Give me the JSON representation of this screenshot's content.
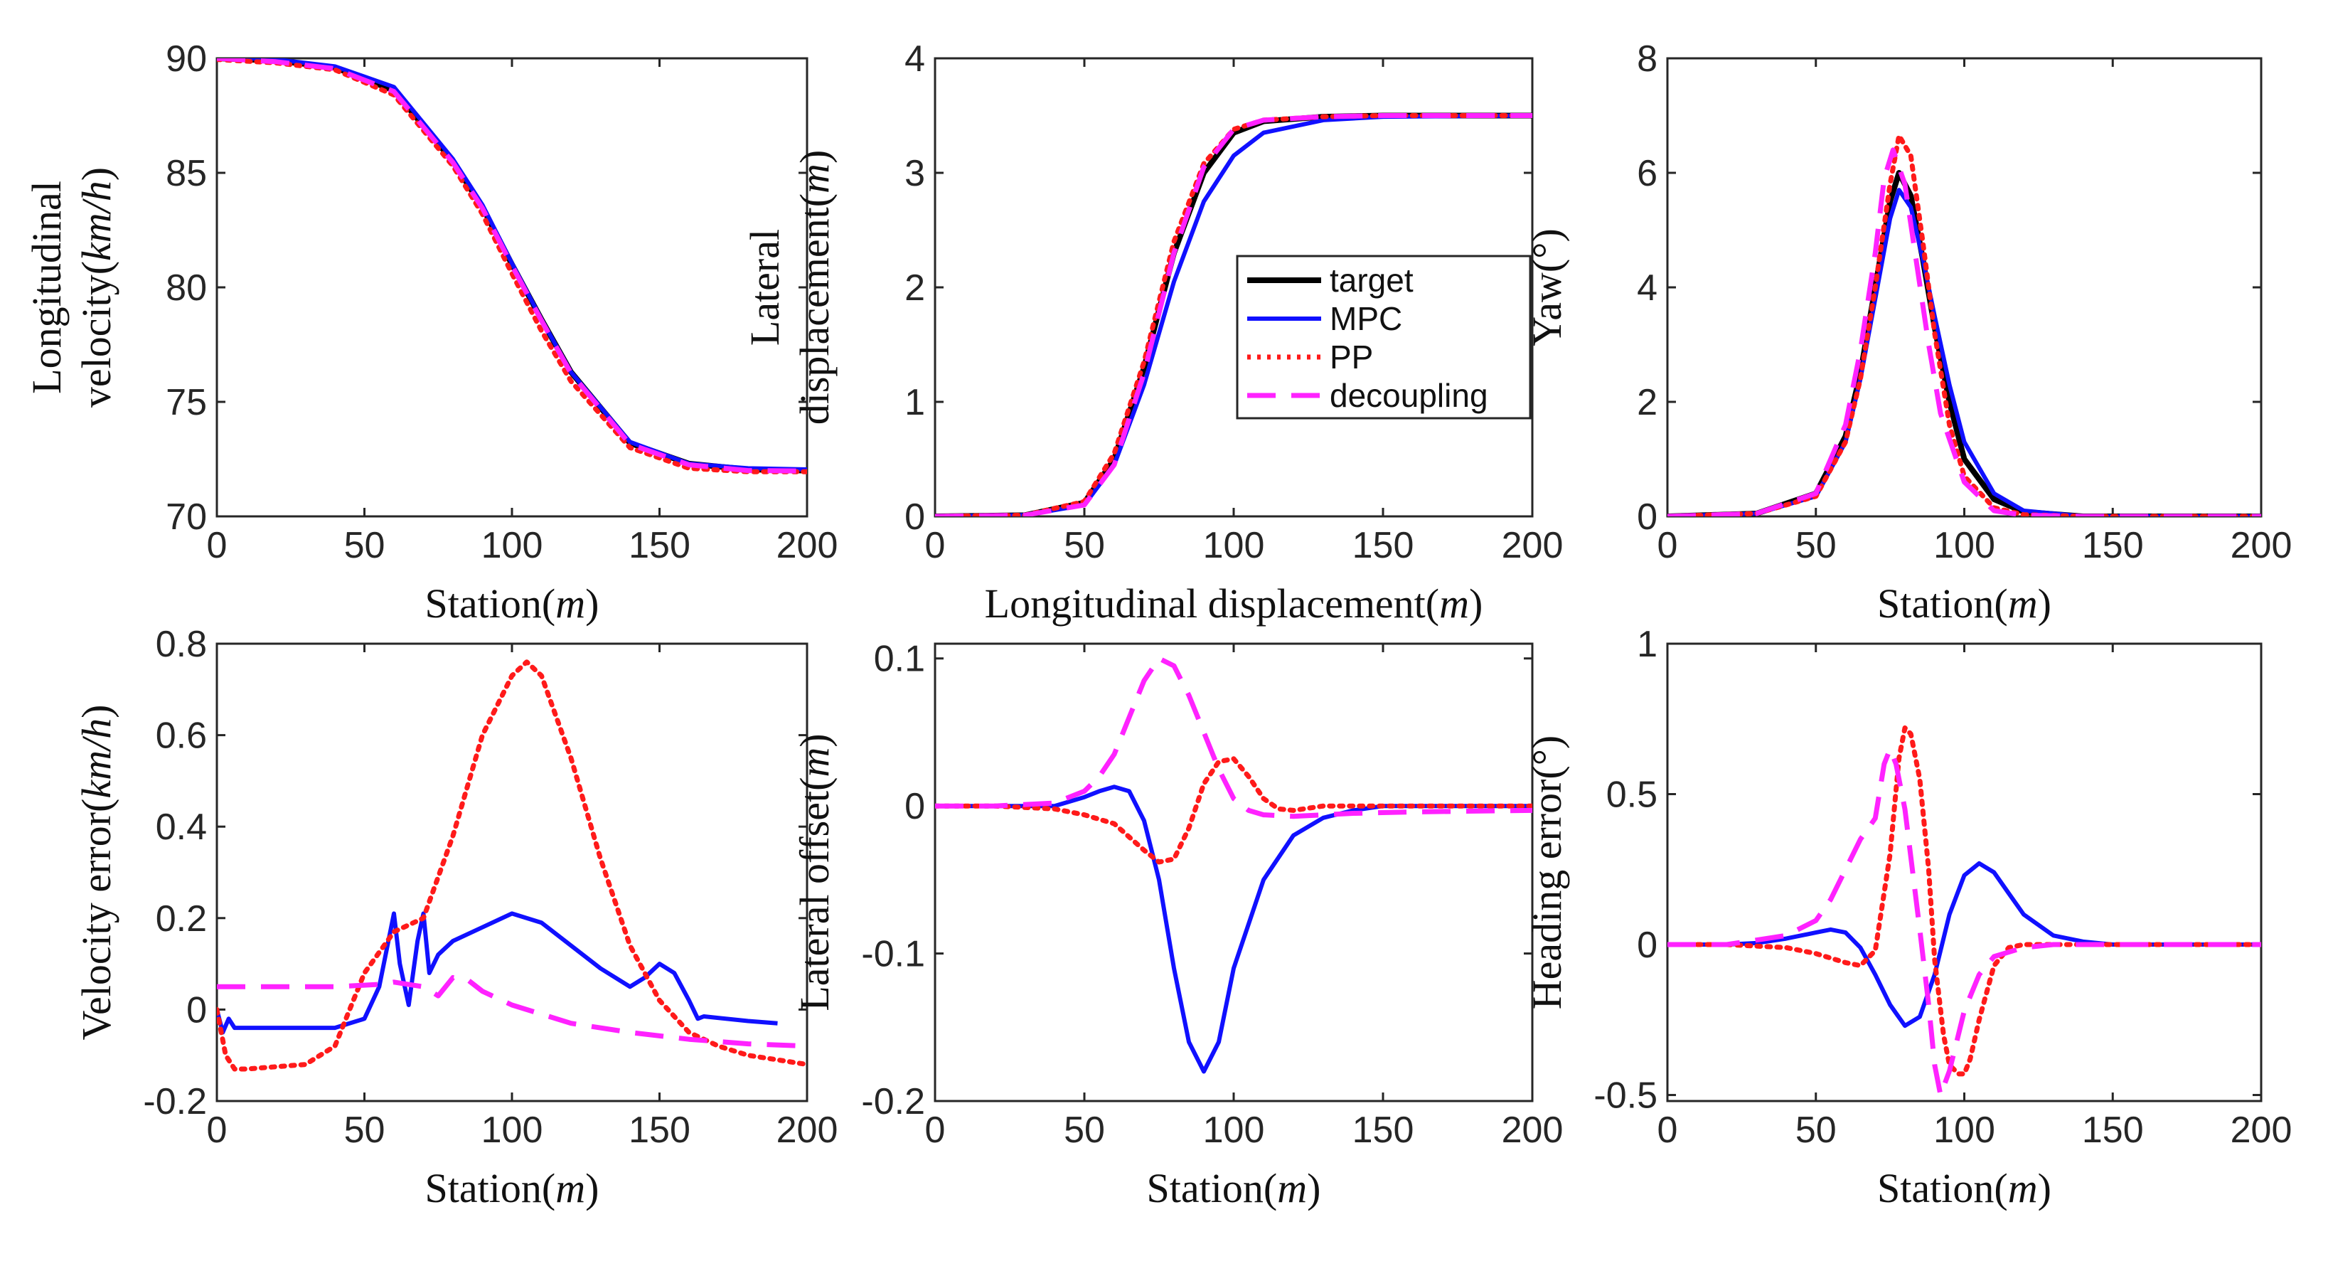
{
  "colors": {
    "target": "#000000",
    "MPC": "#1010ff",
    "PP": "#ff1a1a",
    "decoupling": "#ff22ff"
  },
  "legend": [
    "target",
    "MPC",
    "PP",
    "decoupling"
  ],
  "chart_data": [
    {
      "type": "line",
      "panel": "top-left",
      "xlabel_text": "Station",
      "xlabel_unit": "m",
      "ylabel_lines": [
        "Longitudinal",
        "velocity"
      ],
      "ylabel_unit": "km/h",
      "xlim": [
        0,
        200
      ],
      "ylim": [
        70,
        90
      ],
      "xticks": [
        "0",
        "50",
        "100",
        "150",
        "200"
      ],
      "yticks": [
        "70",
        "75",
        "80",
        "85",
        "90"
      ],
      "series": [
        {
          "name": "target",
          "x": [
            0,
            20,
            40,
            60,
            80,
            90,
            100,
            110,
            120,
            140,
            160,
            180,
            200
          ],
          "y": [
            90,
            89.9,
            89.6,
            88.6,
            85.5,
            83.5,
            81.0,
            78.6,
            76.3,
            73.2,
            72.3,
            72.05,
            72.0
          ]
        },
        {
          "name": "MPC",
          "x": [
            0,
            20,
            40,
            60,
            80,
            90,
            100,
            110,
            120,
            140,
            160,
            180,
            200
          ],
          "y": [
            90.05,
            89.95,
            89.65,
            88.75,
            85.6,
            83.6,
            81.05,
            78.6,
            76.3,
            73.25,
            72.3,
            72.1,
            72.05
          ]
        },
        {
          "name": "PP",
          "x": [
            0,
            20,
            40,
            60,
            80,
            90,
            100,
            110,
            120,
            140,
            160,
            180,
            200
          ],
          "y": [
            89.95,
            89.8,
            89.5,
            88.4,
            85.3,
            83.2,
            80.6,
            78.1,
            75.9,
            73.0,
            72.1,
            71.95,
            71.95
          ]
        },
        {
          "name": "decoupling",
          "x": [
            0,
            20,
            40,
            60,
            80,
            90,
            100,
            110,
            120,
            140,
            160,
            180,
            200
          ],
          "y": [
            90.0,
            89.85,
            89.55,
            88.55,
            85.45,
            83.45,
            80.95,
            78.55,
            76.25,
            73.15,
            72.25,
            72.0,
            71.98
          ]
        }
      ]
    },
    {
      "type": "line",
      "panel": "top-middle",
      "xlabel_text": "Longitudinal displacement",
      "xlabel_unit": "m",
      "ylabel_lines": [
        "Lateral",
        "displacement"
      ],
      "ylabel_unit": "m",
      "xlim": [
        0,
        200
      ],
      "ylim": [
        0,
        4
      ],
      "xticks": [
        "0",
        "50",
        "100",
        "150",
        "200"
      ],
      "yticks": [
        "0",
        "1",
        "2",
        "3",
        "4"
      ],
      "series": [
        {
          "name": "target",
          "x": [
            0,
            30,
            50,
            60,
            70,
            80,
            90,
            100,
            110,
            130,
            150,
            200
          ],
          "y": [
            0,
            0.01,
            0.12,
            0.5,
            1.3,
            2.3,
            3.0,
            3.35,
            3.45,
            3.49,
            3.5,
            3.5
          ]
        },
        {
          "name": "MPC",
          "x": [
            0,
            30,
            50,
            60,
            70,
            80,
            90,
            100,
            110,
            130,
            150,
            200
          ],
          "y": [
            0,
            0.01,
            0.1,
            0.45,
            1.15,
            2.05,
            2.75,
            3.15,
            3.35,
            3.46,
            3.49,
            3.5
          ]
        },
        {
          "name": "PP",
          "x": [
            0,
            30,
            50,
            60,
            70,
            80,
            90,
            100,
            110,
            130,
            150,
            200
          ],
          "y": [
            0,
            0.01,
            0.13,
            0.55,
            1.35,
            2.4,
            3.08,
            3.38,
            3.46,
            3.49,
            3.5,
            3.5
          ]
        },
        {
          "name": "decoupling",
          "x": [
            0,
            30,
            50,
            60,
            70,
            80,
            90,
            100,
            110,
            130,
            150,
            200
          ],
          "y": [
            0,
            0.01,
            0.1,
            0.45,
            1.25,
            2.3,
            3.05,
            3.38,
            3.46,
            3.49,
            3.5,
            3.5
          ]
        }
      ]
    },
    {
      "type": "line",
      "panel": "top-right",
      "xlabel_text": "Station",
      "xlabel_unit": "m",
      "ylabel_lines": [
        "Yaw"
      ],
      "ylabel_unit": "°",
      "xlim": [
        0,
        200
      ],
      "ylim": [
        0,
        8
      ],
      "xticks": [
        "0",
        "50",
        "100",
        "150",
        "200"
      ],
      "yticks": [
        "0",
        "2",
        "4",
        "6",
        "8"
      ],
      "series": [
        {
          "name": "target",
          "x": [
            0,
            30,
            50,
            60,
            65,
            70,
            75,
            78,
            82,
            86,
            90,
            95,
            100,
            110,
            120,
            140,
            200
          ],
          "y": [
            0,
            0.05,
            0.4,
            1.4,
            2.5,
            4.0,
            5.5,
            6.0,
            5.6,
            4.5,
            3.3,
            2.0,
            1.0,
            0.3,
            0.08,
            0.0,
            0.0
          ]
        },
        {
          "name": "MPC",
          "x": [
            0,
            30,
            50,
            60,
            65,
            70,
            75,
            78,
            82,
            86,
            90,
            95,
            100,
            110,
            120,
            140,
            200
          ],
          "y": [
            0,
            0.05,
            0.35,
            1.3,
            2.4,
            3.8,
            5.2,
            5.7,
            5.4,
            4.5,
            3.5,
            2.3,
            1.3,
            0.4,
            0.1,
            0.0,
            0.0
          ]
        },
        {
          "name": "PP",
          "x": [
            0,
            30,
            50,
            60,
            65,
            70,
            75,
            78,
            82,
            86,
            90,
            95,
            100,
            110,
            120,
            140,
            200
          ],
          "y": [
            0,
            0.05,
            0.35,
            1.3,
            2.4,
            4.0,
            5.8,
            6.65,
            6.3,
            4.8,
            3.2,
            1.6,
            0.7,
            0.15,
            0.03,
            0.0,
            0.0
          ]
        },
        {
          "name": "decoupling",
          "x": [
            0,
            30,
            50,
            60,
            65,
            70,
            73,
            76,
            80,
            84,
            88,
            92,
            100,
            110,
            120,
            140,
            200
          ],
          "y": [
            0,
            0.05,
            0.4,
            1.6,
            2.9,
            4.6,
            5.9,
            6.4,
            5.8,
            4.4,
            3.0,
            1.8,
            0.6,
            0.1,
            0.02,
            0.0,
            0.0
          ]
        }
      ]
    },
    {
      "type": "line",
      "panel": "bottom-left",
      "xlabel_text": "Station",
      "xlabel_unit": "m",
      "ylabel_lines": [
        "Velocity error"
      ],
      "ylabel_unit": "km/h",
      "xlim": [
        0,
        200
      ],
      "ylim": [
        -0.2,
        0.8
      ],
      "xticks": [
        "0",
        "50",
        "100",
        "150",
        "200"
      ],
      "yticks": [
        "-0.2",
        "0",
        "0.2",
        "0.4",
        "0.6",
        "0.8"
      ],
      "series": [
        {
          "name": "MPC",
          "x": [
            0,
            2,
            4,
            6,
            10,
            20,
            40,
            50,
            55,
            60,
            62,
            65,
            68,
            70,
            72,
            75,
            80,
            90,
            100,
            110,
            120,
            130,
            140,
            145,
            150,
            155,
            160,
            163,
            165,
            180,
            190
          ],
          "y": [
            0.0,
            -0.05,
            -0.02,
            -0.04,
            -0.04,
            -0.04,
            -0.04,
            -0.02,
            0.05,
            0.21,
            0.1,
            0.01,
            0.15,
            0.21,
            0.08,
            0.12,
            0.15,
            0.18,
            0.21,
            0.19,
            0.14,
            0.09,
            0.05,
            0.07,
            0.1,
            0.08,
            0.02,
            -0.02,
            -0.015,
            -0.025,
            -0.03
          ]
        },
        {
          "name": "PP",
          "x": [
            0,
            3,
            6,
            10,
            20,
            30,
            40,
            50,
            60,
            70,
            80,
            90,
            100,
            105,
            110,
            120,
            130,
            140,
            150,
            160,
            170,
            180,
            190,
            200
          ],
          "y": [
            0.0,
            -0.1,
            -0.13,
            -0.13,
            -0.125,
            -0.12,
            -0.08,
            0.08,
            0.17,
            0.2,
            0.38,
            0.6,
            0.73,
            0.76,
            0.73,
            0.55,
            0.33,
            0.14,
            0.02,
            -0.05,
            -0.08,
            -0.1,
            -0.11,
            -0.12
          ]
        },
        {
          "name": "decoupling",
          "x": [
            0,
            10,
            20,
            40,
            55,
            60,
            70,
            75,
            80,
            85,
            90,
            100,
            110,
            120,
            140,
            160,
            180,
            200
          ],
          "y": [
            0.05,
            0.05,
            0.05,
            0.05,
            0.055,
            0.06,
            0.05,
            0.03,
            0.07,
            0.065,
            0.04,
            0.01,
            -0.01,
            -0.03,
            -0.05,
            -0.065,
            -0.075,
            -0.08
          ]
        }
      ]
    },
    {
      "type": "line",
      "panel": "bottom-middle",
      "xlabel_text": "Station",
      "xlabel_unit": "m",
      "ylabel_lines": [
        "Lateral offset"
      ],
      "ylabel_unit": "m",
      "xlim": [
        0,
        200
      ],
      "ylim": [
        -0.2,
        0.11
      ],
      "xticks": [
        "0",
        "50",
        "100",
        "150",
        "200"
      ],
      "yticks": [
        "-0.2",
        "-0.1",
        "0",
        "0.1"
      ],
      "series": [
        {
          "name": "MPC",
          "x": [
            0,
            20,
            40,
            50,
            55,
            60,
            65,
            70,
            75,
            80,
            85,
            90,
            95,
            100,
            110,
            120,
            130,
            140,
            150,
            200
          ],
          "y": [
            0.0,
            0.0,
            0.0,
            0.006,
            0.01,
            0.013,
            0.01,
            -0.01,
            -0.05,
            -0.11,
            -0.16,
            -0.18,
            -0.16,
            -0.11,
            -0.05,
            -0.02,
            -0.008,
            -0.003,
            0.0,
            0.0
          ]
        },
        {
          "name": "PP",
          "x": [
            0,
            20,
            40,
            50,
            60,
            70,
            75,
            80,
            85,
            90,
            95,
            100,
            105,
            110,
            115,
            120,
            130,
            150,
            200
          ],
          "y": [
            0.0,
            0.0,
            -0.002,
            -0.006,
            -0.012,
            -0.03,
            -0.038,
            -0.036,
            -0.015,
            0.015,
            0.03,
            0.032,
            0.02,
            0.005,
            -0.002,
            -0.003,
            0.0,
            0.0,
            0.0
          ]
        },
        {
          "name": "decoupling",
          "x": [
            0,
            20,
            40,
            50,
            55,
            60,
            65,
            70,
            75,
            80,
            85,
            90,
            95,
            100,
            105,
            110,
            120,
            130,
            140,
            160,
            200
          ],
          "y": [
            0.0,
            0.0,
            0.002,
            0.01,
            0.02,
            0.035,
            0.06,
            0.085,
            0.1,
            0.095,
            0.075,
            0.05,
            0.025,
            0.005,
            -0.003,
            -0.006,
            -0.007,
            -0.006,
            -0.005,
            -0.004,
            -0.003
          ]
        }
      ]
    },
    {
      "type": "line",
      "panel": "bottom-right",
      "xlabel_text": "Station",
      "xlabel_unit": "m",
      "ylabel_lines": [
        "Heading error"
      ],
      "ylabel_unit": "°",
      "xlim": [
        0,
        200
      ],
      "ylim": [
        -0.52,
        1.0
      ],
      "xticks": [
        "0",
        "50",
        "100",
        "150",
        "200"
      ],
      "yticks": [
        "-0.5",
        "0",
        "0.5",
        "1"
      ],
      "series": [
        {
          "name": "MPC",
          "x": [
            0,
            10,
            20,
            30,
            40,
            50,
            55,
            60,
            65,
            70,
            75,
            80,
            85,
            90,
            95,
            100,
            105,
            110,
            115,
            120,
            130,
            140,
            150,
            200
          ],
          "y": [
            0.0,
            0.0,
            0.0,
            0.005,
            0.02,
            0.04,
            0.05,
            0.04,
            -0.01,
            -0.1,
            -0.2,
            -0.27,
            -0.24,
            -0.1,
            0.1,
            0.23,
            0.27,
            0.24,
            0.17,
            0.1,
            0.03,
            0.01,
            0.0,
            0.0
          ]
        },
        {
          "name": "PP",
          "x": [
            0,
            20,
            40,
            50,
            60,
            65,
            70,
            75,
            78,
            80,
            82,
            85,
            88,
            90,
            93,
            95,
            98,
            100,
            102,
            105,
            110,
            115,
            120,
            200
          ],
          "y": [
            0.0,
            0.0,
            -0.01,
            -0.03,
            -0.06,
            -0.07,
            -0.02,
            0.3,
            0.62,
            0.72,
            0.7,
            0.55,
            0.25,
            -0.05,
            -0.3,
            -0.4,
            -0.43,
            -0.43,
            -0.38,
            -0.25,
            -0.07,
            -0.01,
            0.0,
            0.0
          ]
        },
        {
          "name": "decoupling",
          "x": [
            0,
            20,
            40,
            50,
            55,
            60,
            65,
            70,
            73,
            75,
            77,
            80,
            85,
            88,
            90,
            92,
            95,
            98,
            100,
            105,
            110,
            120,
            130,
            200
          ],
          "y": [
            0.0,
            0.0,
            0.03,
            0.08,
            0.15,
            0.25,
            0.35,
            0.42,
            0.6,
            0.65,
            0.6,
            0.45,
            0.05,
            -0.2,
            -0.4,
            -0.5,
            -0.42,
            -0.3,
            -0.22,
            -0.1,
            -0.04,
            -0.01,
            0.0,
            0.0
          ]
        }
      ]
    }
  ]
}
